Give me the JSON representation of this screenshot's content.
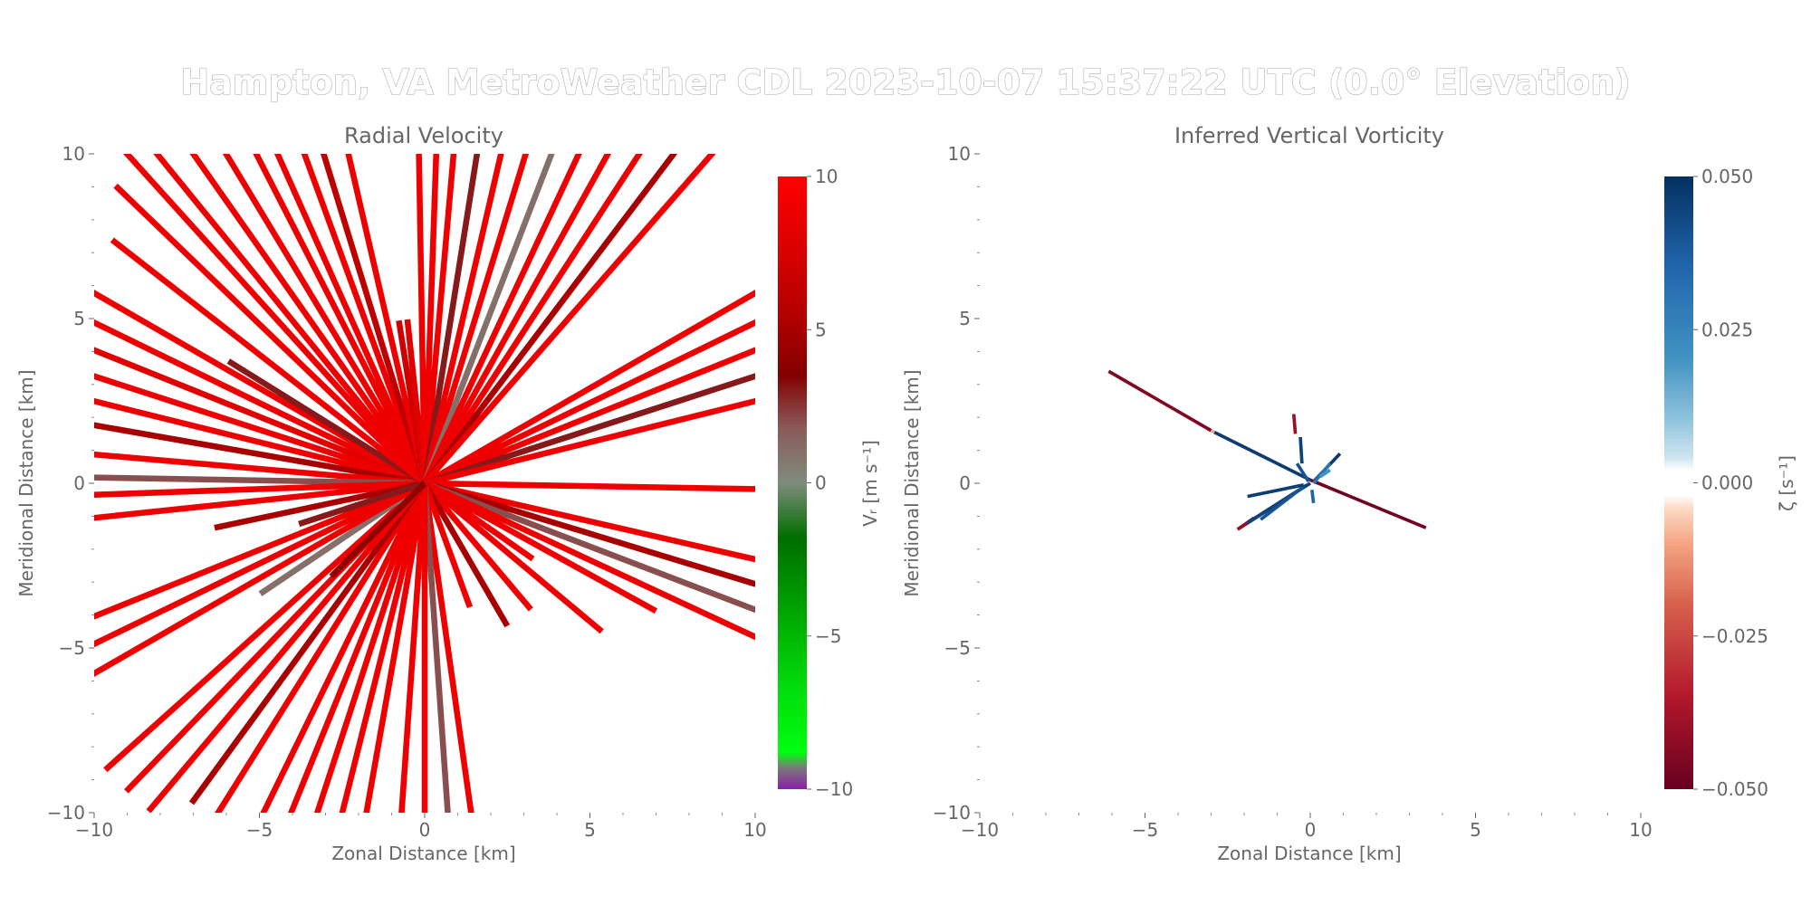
{
  "figure": {
    "suptitle": "Hampton, VA MetroWeather CDL 2023-10-07 15:37:22 UTC (0.0° Elevation)"
  },
  "chart_data": [
    {
      "type": "heatmap",
      "plot_kind": "PPI radial velocity (radar rays)",
      "title": "Radial Velocity",
      "xlabel": "Zonal Distance [km]",
      "ylabel": "Meridional Distance [km]",
      "xlim": [
        -10,
        10
      ],
      "ylim": [
        -10,
        10
      ],
      "xticks": [
        "−10",
        "−5",
        "0",
        "5",
        "10"
      ],
      "yticks": [
        "−10",
        "−5",
        "0",
        "5",
        "10"
      ],
      "colorbar": {
        "label": "Vᵣ [m s⁻¹]",
        "range": [
          -10,
          10
        ],
        "ticks": [
          "−10",
          "−5",
          "0",
          "5",
          "10"
        ],
        "tick_values": [
          -10,
          -5,
          0,
          5,
          10
        ],
        "stops": [
          {
            "v": -10,
            "color": "#8a1fa8"
          },
          {
            "v": -9.3,
            "color": "#7a7a7a"
          },
          {
            "v": -8.8,
            "color": "#00ff10"
          },
          {
            "v": -6.5,
            "color": "#00d80a"
          },
          {
            "v": -4.0,
            "color": "#00a000"
          },
          {
            "v": -1.8,
            "color": "#006e00"
          },
          {
            "v": 0.0,
            "color": "#7f8c7c"
          },
          {
            "v": 1.8,
            "color": "#8a5a5a"
          },
          {
            "v": 3.5,
            "color": "#840000"
          },
          {
            "v": 5.5,
            "color": "#b40000"
          },
          {
            "v": 7.5,
            "color": "#d80000"
          },
          {
            "v": 10,
            "color": "#ff0000"
          }
        ]
      },
      "ray_width_km": 0.18,
      "rays": [
        {
          "az": 300,
          "range": 14,
          "v": 9
        },
        {
          "az": 296,
          "range": 14,
          "v": 9
        },
        {
          "az": 292,
          "range": 13,
          "v": 8
        },
        {
          "az": 288,
          "range": 13,
          "v": 9
        },
        {
          "az": 284,
          "range": 12,
          "v": 9
        },
        {
          "az": 280,
          "range": 11,
          "v": 5
        },
        {
          "az": 275,
          "range": 11,
          "v": 9
        },
        {
          "az": 271,
          "range": 11,
          "v": 2
        },
        {
          "az": 268,
          "range": 11,
          "v": 9
        },
        {
          "az": 264,
          "range": 11,
          "v": 9
        },
        {
          "az": 258,
          "range": 6.5,
          "v": 5
        },
        {
          "az": 302,
          "range": 7,
          "v": 3
        },
        {
          "az": 308,
          "range": 12,
          "v": 9
        },
        {
          "az": 314,
          "range": 13,
          "v": 9
        },
        {
          "az": 318,
          "range": 14,
          "v": 9
        },
        {
          "az": 321,
          "range": 14,
          "v": 9
        },
        {
          "az": 325,
          "range": 14,
          "v": 9
        },
        {
          "az": 329,
          "range": 14,
          "v": 9
        },
        {
          "az": 333,
          "range": 13,
          "v": 9
        },
        {
          "az": 336,
          "range": 13,
          "v": 9
        },
        {
          "az": 340,
          "range": 12,
          "v": 9
        },
        {
          "az": 343,
          "range": 12,
          "v": 6
        },
        {
          "az": 347,
          "range": 12,
          "v": 9
        },
        {
          "az": 351,
          "range": 5,
          "v": 7
        },
        {
          "az": 354,
          "range": 5,
          "v": 8
        },
        {
          "az": 359,
          "range": 12,
          "v": 9
        },
        {
          "az": 2,
          "range": 12,
          "v": 9
        },
        {
          "az": 5,
          "range": 12,
          "v": 9
        },
        {
          "az": 9,
          "range": 12,
          "v": 3
        },
        {
          "az": 13,
          "range": 13,
          "v": 9
        },
        {
          "az": 17,
          "range": 13,
          "v": 9
        },
        {
          "az": 21,
          "range": 13,
          "v": 1
        },
        {
          "az": 25,
          "range": 13,
          "v": 9
        },
        {
          "az": 29,
          "range": 13,
          "v": 9
        },
        {
          "az": 33,
          "range": 14,
          "v": 9
        },
        {
          "az": 37,
          "range": 14,
          "v": 5
        },
        {
          "az": 41,
          "range": 14,
          "v": 9
        },
        {
          "az": 60,
          "range": 12,
          "v": 9
        },
        {
          "az": 64,
          "range": 12,
          "v": 9
        },
        {
          "az": 68,
          "range": 12,
          "v": 9
        },
        {
          "az": 72,
          "range": 12,
          "v": 3
        },
        {
          "az": 76,
          "range": 12,
          "v": 9
        },
        {
          "az": 91,
          "range": 11,
          "v": 9
        },
        {
          "az": 103,
          "range": 12,
          "v": 9
        },
        {
          "az": 107,
          "range": 12,
          "v": 5
        },
        {
          "az": 111,
          "range": 12,
          "v": 2
        },
        {
          "az": 115,
          "range": 12,
          "v": 9
        },
        {
          "az": 119,
          "range": 8,
          "v": 9
        },
        {
          "az": 125,
          "range": 4,
          "v": 9
        },
        {
          "az": 130,
          "range": 7,
          "v": 9
        },
        {
          "az": 140,
          "range": 5,
          "v": 9
        },
        {
          "az": 150,
          "range": 5,
          "v": 5
        },
        {
          "az": 160,
          "range": 4,
          "v": 9
        },
        {
          "az": 172,
          "range": 11,
          "v": 9
        },
        {
          "az": 176,
          "range": 11,
          "v": 2
        },
        {
          "az": 180,
          "range": 11,
          "v": 9
        },
        {
          "az": 184,
          "range": 11,
          "v": 9
        },
        {
          "az": 190,
          "range": 11,
          "v": 9
        },
        {
          "az": 194,
          "range": 11,
          "v": 9
        },
        {
          "az": 198,
          "range": 12,
          "v": 9
        },
        {
          "az": 202,
          "range": 12,
          "v": 9
        },
        {
          "az": 206,
          "range": 12,
          "v": 9
        },
        {
          "az": 212,
          "range": 12,
          "v": 9
        },
        {
          "az": 216,
          "range": 12,
          "v": 5
        },
        {
          "az": 220,
          "range": 13,
          "v": 9
        },
        {
          "az": 224,
          "range": 13,
          "v": 9
        },
        {
          "az": 228,
          "range": 13,
          "v": 9
        },
        {
          "az": 236,
          "range": 6,
          "v": 1
        },
        {
          "az": 240,
          "range": 12,
          "v": 9
        },
        {
          "az": 244,
          "range": 12,
          "v": 9
        },
        {
          "az": 248,
          "range": 12,
          "v": 9
        },
        {
          "az": 252,
          "range": 4,
          "v": 3
        },
        {
          "az": 225,
          "range": 4,
          "v": 4
        }
      ]
    },
    {
      "type": "heatmap",
      "plot_kind": "PPI inferred vertical vorticity (sparse rays)",
      "title": "Inferred Vertical Vorticity",
      "xlabel": "Zonal Distance [km]",
      "ylabel": "Meridional Distance [km]",
      "xlim": [
        -10,
        10
      ],
      "ylim": [
        -10,
        10
      ],
      "xticks": [
        "−10",
        "−5",
        "0",
        "5",
        "10"
      ],
      "yticks": [
        "−10",
        "−5",
        "0",
        "5",
        "10"
      ],
      "colorbar": {
        "label": "ζ [s⁻¹]",
        "range": [
          -0.05,
          0.05
        ],
        "ticks": [
          "0.050",
          "0.025",
          "0.000",
          "−0.025",
          "−0.050"
        ],
        "tick_values": [
          0.05,
          0.025,
          0,
          -0.025,
          -0.05
        ],
        "stops": [
          {
            "v": -0.05,
            "color": "#67001f"
          },
          {
            "v": -0.035,
            "color": "#b2182b"
          },
          {
            "v": -0.02,
            "color": "#d6604d"
          },
          {
            "v": -0.01,
            "color": "#f4a582"
          },
          {
            "v": -0.004,
            "color": "#fddbc7"
          },
          {
            "v": -0.002,
            "color": "#ffffff"
          },
          {
            "v": 0.002,
            "color": "#ffffff"
          },
          {
            "v": 0.004,
            "color": "#d1e5f0"
          },
          {
            "v": 0.01,
            "color": "#92c5de"
          },
          {
            "v": 0.02,
            "color": "#4393c3"
          },
          {
            "v": 0.035,
            "color": "#2166ac"
          },
          {
            "v": 0.05,
            "color": "#053061"
          }
        ]
      },
      "ray_width_km": 0.1,
      "segments": [
        {
          "x0": -6.1,
          "y0": 3.4,
          "x1": -3.0,
          "y1": 1.6,
          "v": -0.045
        },
        {
          "x0": -3.0,
          "y0": 1.6,
          "x1": -2.9,
          "y1": 1.55,
          "v": -0.01
        },
        {
          "x0": -2.9,
          "y0": 1.55,
          "x1": 0.0,
          "y1": 0.1,
          "v": 0.047
        },
        {
          "x0": 0.0,
          "y0": 0.1,
          "x1": 3.5,
          "y1": -1.35,
          "v": -0.048
        },
        {
          "x0": -2.2,
          "y0": -1.4,
          "x1": 0.0,
          "y1": 0.0,
          "v": 0.047
        },
        {
          "x0": -2.2,
          "y0": -1.4,
          "x1": -1.7,
          "y1": -1.05,
          "v": -0.04
        },
        {
          "x0": -1.9,
          "y0": -1.2,
          "x1": -0.1,
          "y1": -0.05,
          "v": 0.045
        },
        {
          "x0": -1.5,
          "y0": -1.1,
          "x1": -0.2,
          "y1": -0.1,
          "v": 0.04
        },
        {
          "x0": -1.9,
          "y0": -0.4,
          "x1": -0.2,
          "y1": -0.05,
          "v": 0.046
        },
        {
          "x0": -0.5,
          "y0": 2.1,
          "x1": -0.45,
          "y1": 1.5,
          "v": -0.04
        },
        {
          "x0": -0.3,
          "y0": 1.4,
          "x1": -0.25,
          "y1": 0.6,
          "v": 0.045
        },
        {
          "x0": 0.9,
          "y0": 0.9,
          "x1": 0.1,
          "y1": 0.05,
          "v": 0.047
        },
        {
          "x0": 0.6,
          "y0": 0.6,
          "x1": 0.1,
          "y1": 0.0,
          "v": 0.03
        },
        {
          "x0": -0.4,
          "y0": 0.6,
          "x1": -0.05,
          "y1": 0.05,
          "v": 0.04
        },
        {
          "x0": 0.05,
          "y0": -0.2,
          "x1": 0.1,
          "y1": -0.6,
          "v": 0.035
        },
        {
          "x0": 0.3,
          "y0": 0.2,
          "x1": 0.6,
          "y1": 0.4,
          "v": 0.02
        }
      ]
    }
  ]
}
